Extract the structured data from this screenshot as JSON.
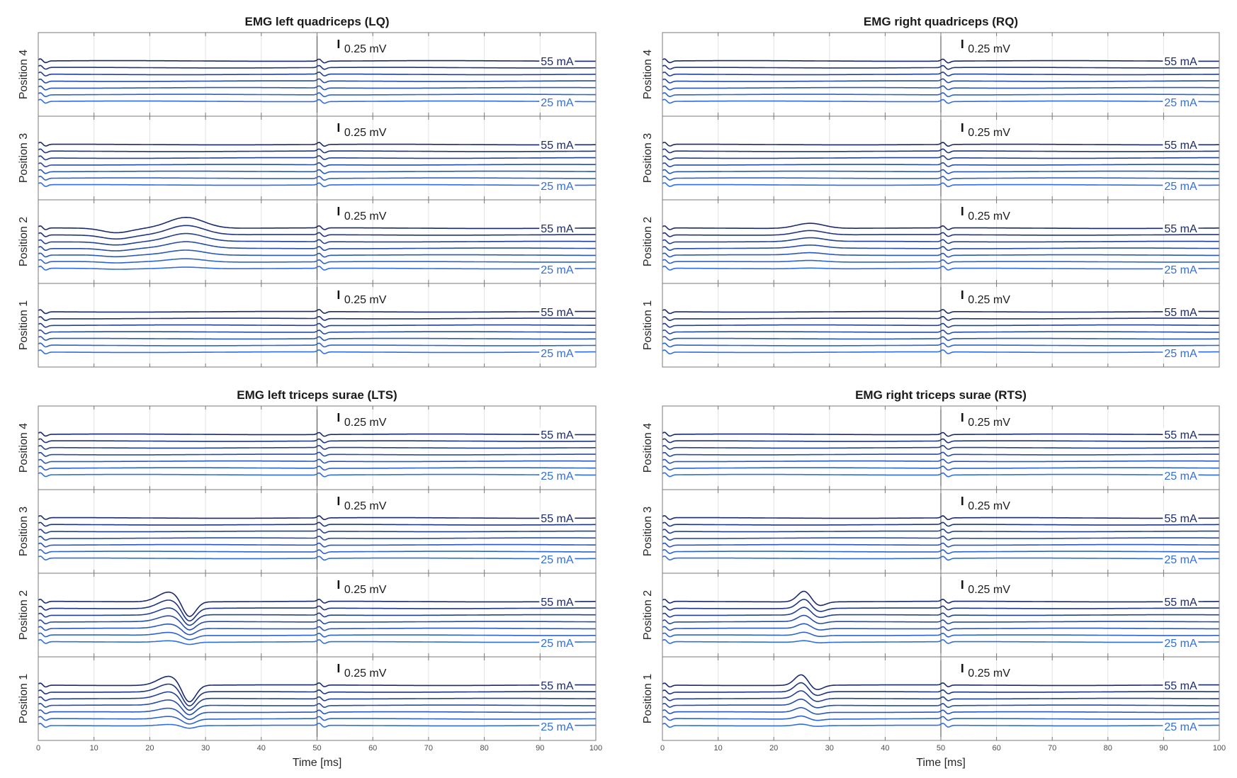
{
  "colors": {
    "dark": "#1a2a6c",
    "light": "#2f6fe0",
    "axis": "#7a7a7a",
    "grid": "#e3e3e3",
    "ref": "#444444"
  },
  "chart_data": [
    {
      "type": "line",
      "title": "EMG left quadriceps (LQ)",
      "xlabel": "Time [ms]",
      "xlim": [
        0,
        100
      ],
      "xticks": [
        0,
        10,
        20,
        30,
        40,
        50,
        60,
        70,
        80,
        90,
        100
      ],
      "show_xaxis": false,
      "scale_bar": "0.25 mV",
      "stim_high": "55 mA",
      "stim_low": "25 mA",
      "trace_count": 7,
      "stim_artifacts_ms": [
        0,
        50
      ],
      "rows": [
        {
          "label": "Position 4",
          "responses": []
        },
        {
          "label": "Position 3",
          "responses": []
        },
        {
          "label": "Position 2",
          "responses": [
            {
              "t": 14,
              "amp": -0.12,
              "w": 2.5
            },
            {
              "t": 26.5,
              "amp": 0.3,
              "w": 3.2
            }
          ]
        },
        {
          "label": "Position 1",
          "responses": []
        }
      ]
    },
    {
      "type": "line",
      "title": "EMG right quadriceps (RQ)",
      "xlabel": "Time [ms]",
      "xlim": [
        0,
        100
      ],
      "xticks": [
        0,
        10,
        20,
        30,
        40,
        50,
        60,
        70,
        80,
        90,
        100
      ],
      "show_xaxis": false,
      "scale_bar": "0.25 mV",
      "stim_high": "55 mA",
      "stim_low": "25 mA",
      "trace_count": 7,
      "stim_artifacts_ms": [
        0,
        50
      ],
      "rows": [
        {
          "label": "Position 4",
          "responses": []
        },
        {
          "label": "Position 3",
          "responses": []
        },
        {
          "label": "Position 2",
          "responses": [
            {
              "t": 26.5,
              "amp": 0.14,
              "w": 2.5
            }
          ]
        },
        {
          "label": "Position 1",
          "responses": []
        }
      ]
    },
    {
      "type": "line",
      "title": "EMG left triceps surae (LTS)",
      "xlabel": "Time [ms]",
      "xlim": [
        0,
        100
      ],
      "xticks": [
        0,
        10,
        20,
        30,
        40,
        50,
        60,
        70,
        80,
        90,
        100
      ],
      "show_xaxis": true,
      "scale_bar": "0.25 mV",
      "stim_high": "55 mA",
      "stim_low": "25 mA",
      "trace_count": 7,
      "stim_artifacts_ms": [
        0,
        50
      ],
      "rows": [
        {
          "label": "Position 4",
          "responses": []
        },
        {
          "label": "Position 3",
          "responses": []
        },
        {
          "label": "Position 2",
          "responses": [
            {
              "t": 23.5,
              "amp": 0.27,
              "w": 2.0
            },
            {
              "t": 27,
              "amp": -0.45,
              "w": 1.2
            }
          ]
        },
        {
          "label": "Position 1",
          "responses": [
            {
              "t": 23.5,
              "amp": 0.25,
              "w": 2.0
            },
            {
              "t": 27,
              "amp": -0.5,
              "w": 1.2
            }
          ]
        }
      ]
    },
    {
      "type": "line",
      "title": "EMG right triceps surae (RTS)",
      "xlabel": "Time [ms]",
      "xlim": [
        0,
        100
      ],
      "xticks": [
        0,
        10,
        20,
        30,
        40,
        50,
        60,
        70,
        80,
        90,
        100
      ],
      "show_xaxis": true,
      "scale_bar": "0.25 mV",
      "stim_high": "55 mA",
      "stim_low": "25 mA",
      "trace_count": 7,
      "stim_artifacts_ms": [
        0,
        50
      ],
      "rows": [
        {
          "label": "Position 4",
          "responses": []
        },
        {
          "label": "Position 3",
          "responses": []
        },
        {
          "label": "Position 2",
          "responses": [
            {
              "t": 25.5,
              "amp": 0.3,
              "w": 1.2
            },
            {
              "t": 28,
              "amp": -0.12,
              "w": 1.2
            }
          ]
        },
        {
          "label": "Position 1",
          "responses": [
            {
              "t": 25,
              "amp": 0.3,
              "w": 1.2
            },
            {
              "t": 27.5,
              "amp": -0.14,
              "w": 1.2
            }
          ]
        }
      ]
    }
  ]
}
